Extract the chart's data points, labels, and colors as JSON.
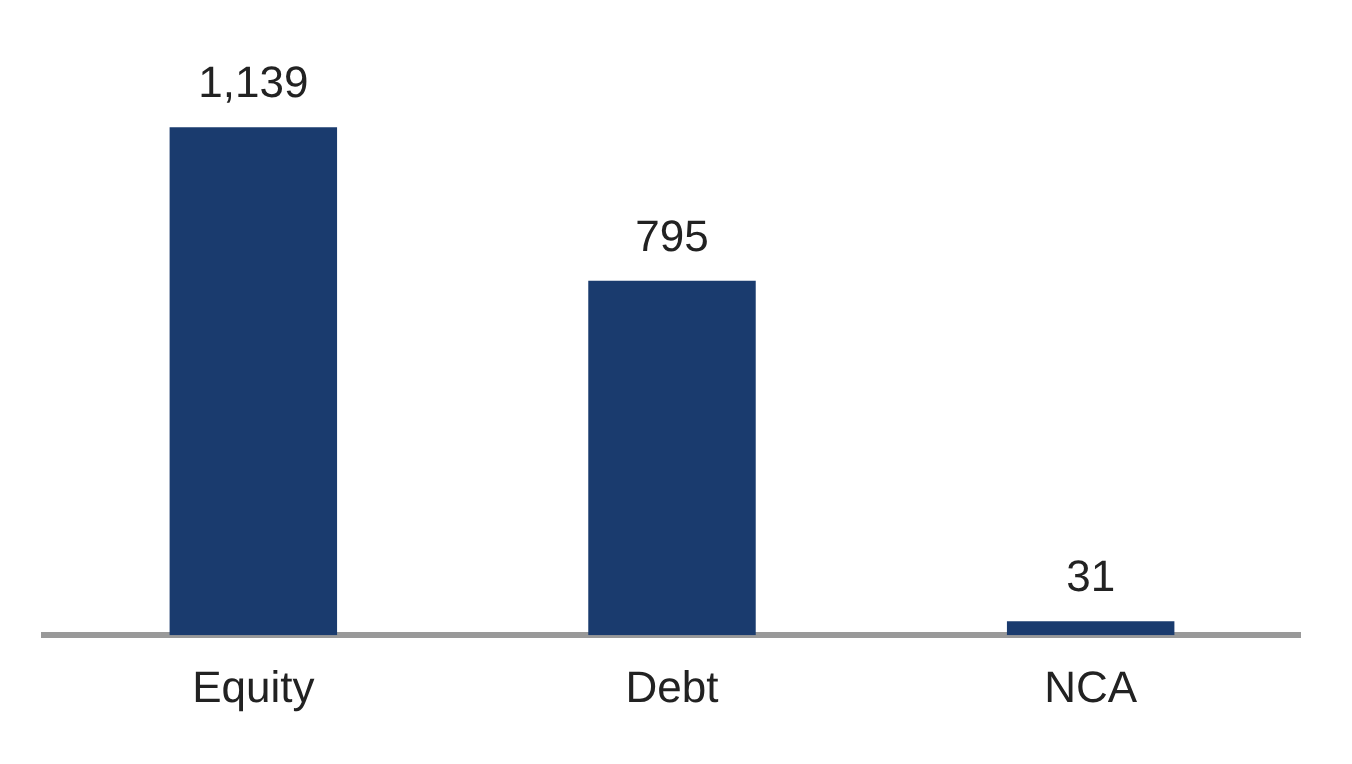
{
  "chart_data": {
    "type": "bar",
    "categories": [
      "Equity",
      "Debt",
      "NCA"
    ],
    "values": [
      1139,
      795,
      31
    ],
    "value_labels": [
      "1,139",
      "795",
      "31"
    ],
    "color": "#1a3b6e"
  }
}
